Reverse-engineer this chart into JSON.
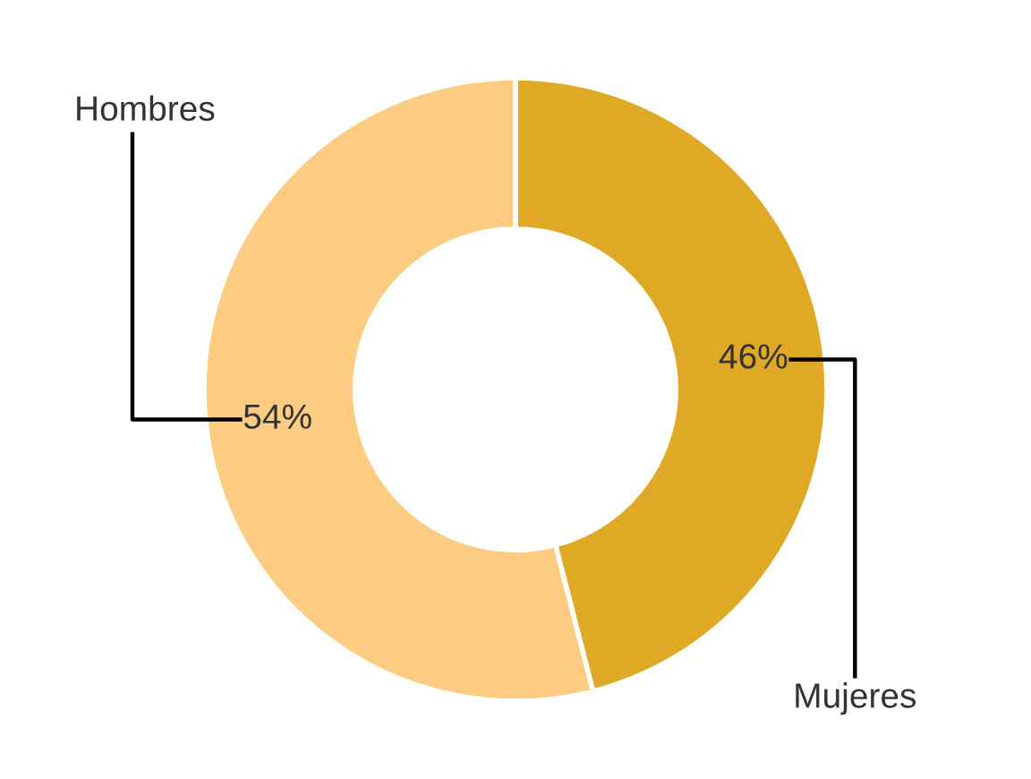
{
  "chart_data": {
    "type": "donut",
    "categories": [
      "Mujeres",
      "Hombres"
    ],
    "values": [
      46,
      54
    ],
    "colors": [
      "#dfa925",
      "#fdcb82"
    ],
    "value_labels": [
      "46%",
      "54%"
    ],
    "legend": false
  }
}
